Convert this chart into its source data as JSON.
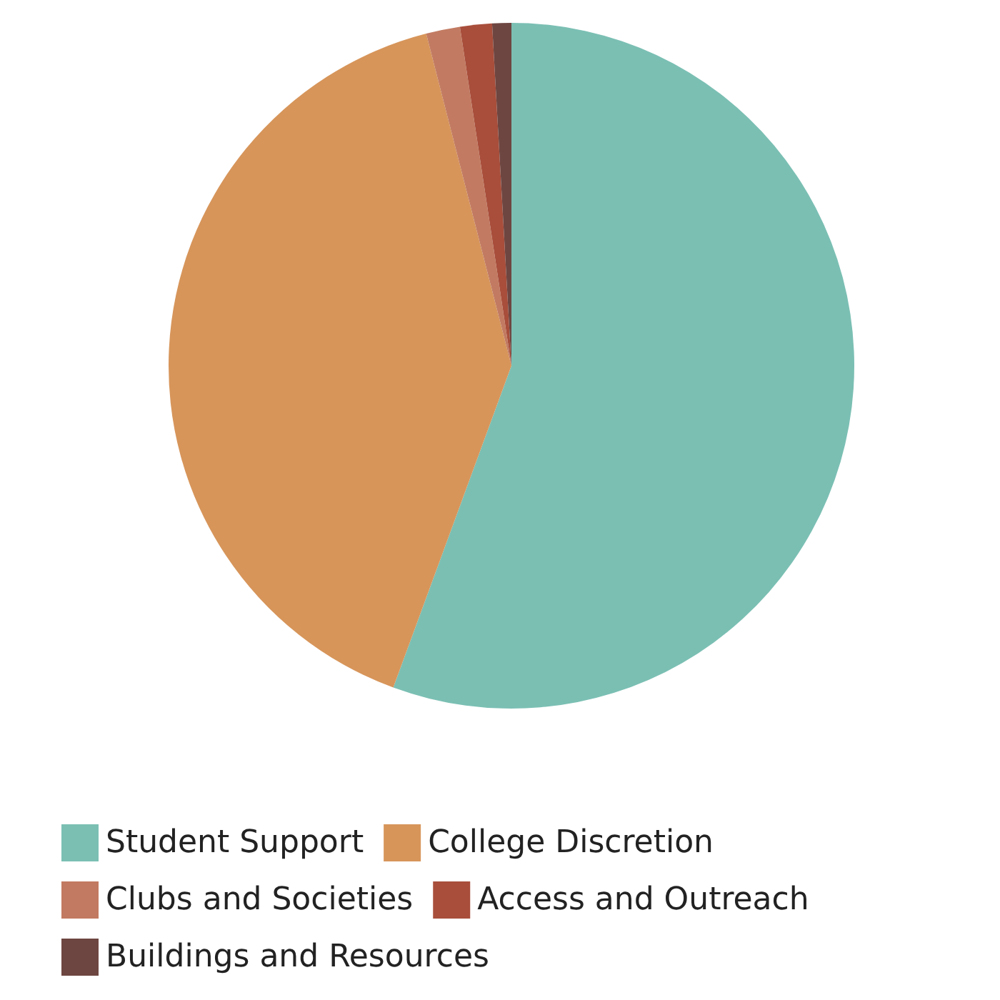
{
  "chart_data": {
    "type": "pie",
    "categories": [
      "Student Support",
      "College Discretion",
      "Clubs and Societies",
      "Access and Outreach",
      "Buildings and Resources"
    ],
    "values": [
      55.6,
      40.4,
      1.6,
      1.5,
      0.9
    ],
    "colors": [
      "#7bbfb3",
      "#d7955a",
      "#c27b62",
      "#a84e3b",
      "#6e4641"
    ],
    "legend": "bottom"
  }
}
